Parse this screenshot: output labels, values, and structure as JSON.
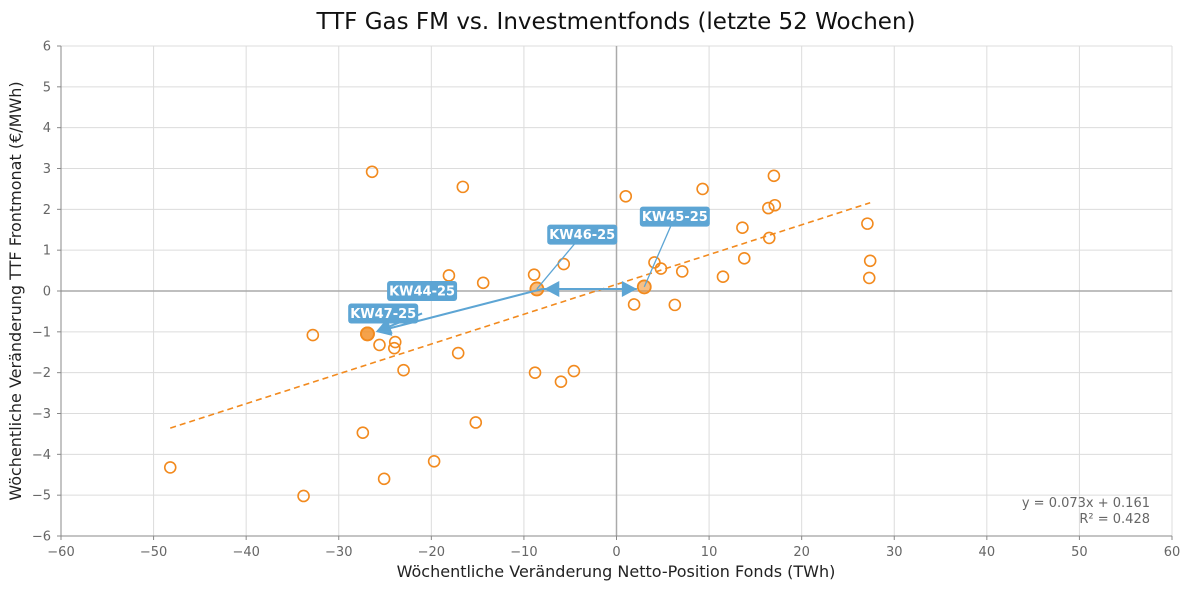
{
  "chart_data": {
    "type": "scatter",
    "title": "TTF Gas FM vs. Investmentfonds (letzte 52 Wochen)",
    "xlabel": "Wöchentliche Veränderung Netto-Position Fonds (TWh)",
    "ylabel": "Wöchentliche Veränderung TTF Frontmonat (€/MWh)",
    "xlim": [
      -60,
      60
    ],
    "ylim": [
      -6,
      6
    ],
    "xticks": [
      -60,
      -50,
      -40,
      -30,
      -20,
      -10,
      0,
      10,
      20,
      30,
      40,
      50,
      60
    ],
    "yticks": [
      -6,
      -5,
      -4,
      -3,
      -2,
      -1,
      0,
      1,
      2,
      3,
      4,
      5,
      6
    ],
    "xtick_labels": [
      "−60",
      "−50",
      "−40",
      "−30",
      "−20",
      "−10",
      "0",
      "10",
      "20",
      "30",
      "40",
      "50",
      "60"
    ],
    "ytick_labels": [
      "−6",
      "−5",
      "−4",
      "−3",
      "−2",
      "−1",
      "0",
      "1",
      "2",
      "3",
      "4",
      "5",
      "6"
    ],
    "grid": true,
    "colors": {
      "points": "#f28a1e",
      "trendline": "#f28a1e",
      "annotation": "#5da5d4",
      "grid": "#dcdcdc",
      "zero_line": "#aaaaaa"
    },
    "points": [
      {
        "x": -48.2,
        "y": -4.32
      },
      {
        "x": -33.8,
        "y": -5.02
      },
      {
        "x": -32.8,
        "y": -1.08
      },
      {
        "x": -27.4,
        "y": -3.47
      },
      {
        "x": -26.4,
        "y": 2.92
      },
      {
        "x": -25.6,
        "y": -1.32
      },
      {
        "x": -25.1,
        "y": -4.6
      },
      {
        "x": -23.9,
        "y": -1.25
      },
      {
        "x": -24.0,
        "y": -1.4
      },
      {
        "x": -23.0,
        "y": -1.94
      },
      {
        "x": -19.7,
        "y": -4.17
      },
      {
        "x": -18.1,
        "y": 0.38
      },
      {
        "x": -17.1,
        "y": -1.52
      },
      {
        "x": -16.6,
        "y": 2.55
      },
      {
        "x": -15.2,
        "y": -3.22
      },
      {
        "x": -14.4,
        "y": 0.2
      },
      {
        "x": -8.9,
        "y": 0.4
      },
      {
        "x": -8.8,
        "y": -2.0
      },
      {
        "x": -6.0,
        "y": -2.22
      },
      {
        "x": -5.7,
        "y": 0.66
      },
      {
        "x": -4.6,
        "y": -1.96
      },
      {
        "x": 1.0,
        "y": 2.32
      },
      {
        "x": 1.9,
        "y": -0.33
      },
      {
        "x": 4.1,
        "y": 0.7
      },
      {
        "x": 4.8,
        "y": 0.55
      },
      {
        "x": 6.3,
        "y": -0.34
      },
      {
        "x": 7.1,
        "y": 0.48
      },
      {
        "x": 9.3,
        "y": 2.5
      },
      {
        "x": 11.5,
        "y": 0.35
      },
      {
        "x": 13.6,
        "y": 1.55
      },
      {
        "x": 13.8,
        "y": 0.8
      },
      {
        "x": 16.4,
        "y": 2.03
      },
      {
        "x": 16.5,
        "y": 1.3
      },
      {
        "x": 17.0,
        "y": 2.82
      },
      {
        "x": 17.1,
        "y": 2.1
      },
      {
        "x": 27.1,
        "y": 1.65
      },
      {
        "x": 27.3,
        "y": 0.32
      },
      {
        "x": 27.4,
        "y": 0.74
      }
    ],
    "highlighted": [
      {
        "label": "KW44-25",
        "x": -26.9,
        "y": -1.05
      },
      {
        "label": "KW45-25",
        "x": 3.0,
        "y": 0.1
      },
      {
        "label": "KW46-25",
        "x": -8.6,
        "y": 0.05
      },
      {
        "label": "KW47-25",
        "x": -26.9,
        "y": -1.05
      }
    ],
    "regression": {
      "slope": 0.073,
      "intercept": 0.161,
      "x_range": [
        -48.2,
        27.4
      ],
      "equation_label": "y = 0.073x + 0.161",
      "r2_label": "R² = 0.428"
    },
    "annotations": [
      {
        "label": "KW44-25",
        "label_x": -21.0,
        "label_y": 0.0,
        "arrow_from": {
          "x": -21.0,
          "y": -0.55
        },
        "arrow_to": {
          "x": -26.0,
          "y": -1.0
        }
      },
      {
        "label": "KW45-25",
        "label_x": 6.3,
        "label_y": 1.82,
        "arrow_from": {
          "x": -8.0,
          "y": 0.05
        },
        "arrow_to": {
          "x": 2.2,
          "y": 0.05
        },
        "leader_to": {
          "x": 3.0,
          "y": 0.1
        }
      },
      {
        "label": "KW46-25",
        "label_x": -3.7,
        "label_y": 1.38,
        "arrow_from": {
          "x": 2.2,
          "y": 0.05
        },
        "arrow_to": {
          "x": -7.8,
          "y": 0.05
        },
        "leader_to": {
          "x": -8.6,
          "y": 0.05
        }
      },
      {
        "label": "KW47-25",
        "label_x": -25.2,
        "label_y": -0.55,
        "arrow_from": {
          "x": -8.0,
          "y": 0.05
        },
        "arrow_to": {
          "x": -26.0,
          "y": -1.0
        }
      }
    ]
  }
}
